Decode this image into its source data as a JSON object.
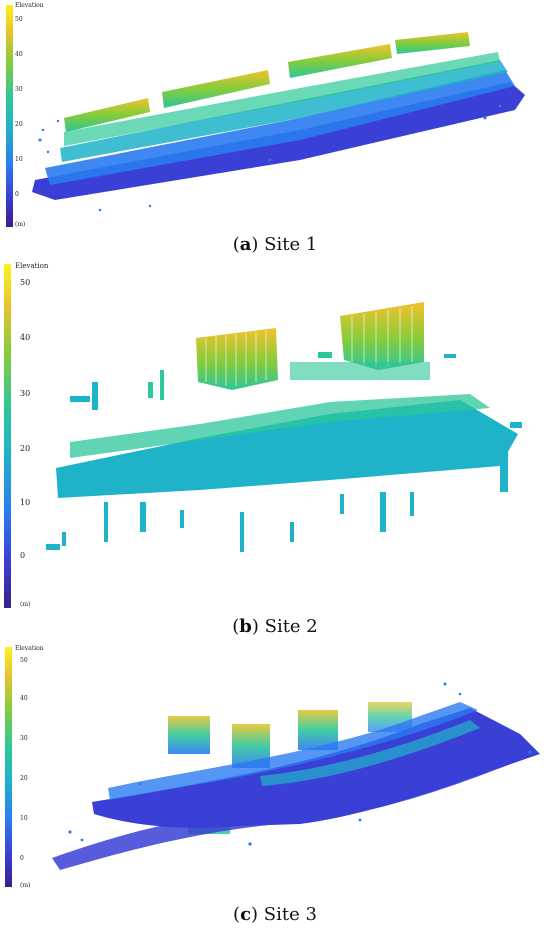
{
  "panels": [
    {
      "id": "a",
      "caption_letter": "a",
      "caption_text": " Site 1",
      "colorbar_label": "Elevation",
      "unit": "(m)",
      "ticks": [
        "50",
        "40",
        "30",
        "20",
        "10",
        "0"
      ]
    },
    {
      "id": "b",
      "caption_letter": "b",
      "caption_text": " Site 2",
      "colorbar_label": "Elevation",
      "unit": "(m)",
      "ticks": [
        "50",
        "40",
        "30",
        "20",
        "10",
        "0"
      ]
    },
    {
      "id": "c",
      "caption_letter": "c",
      "caption_text": " Site 3",
      "colorbar_label": "Elevation",
      "unit": "(m)",
      "ticks": [
        "50",
        "40",
        "30",
        "20",
        "10",
        "0"
      ]
    }
  ],
  "colors": {
    "low": "#3b1e8c",
    "mid_low": "#2a7bf0",
    "mid": "#1fb3c9",
    "mid_high": "#2cc79a",
    "high": "#e8c52b",
    "top": "#f9f31b"
  }
}
